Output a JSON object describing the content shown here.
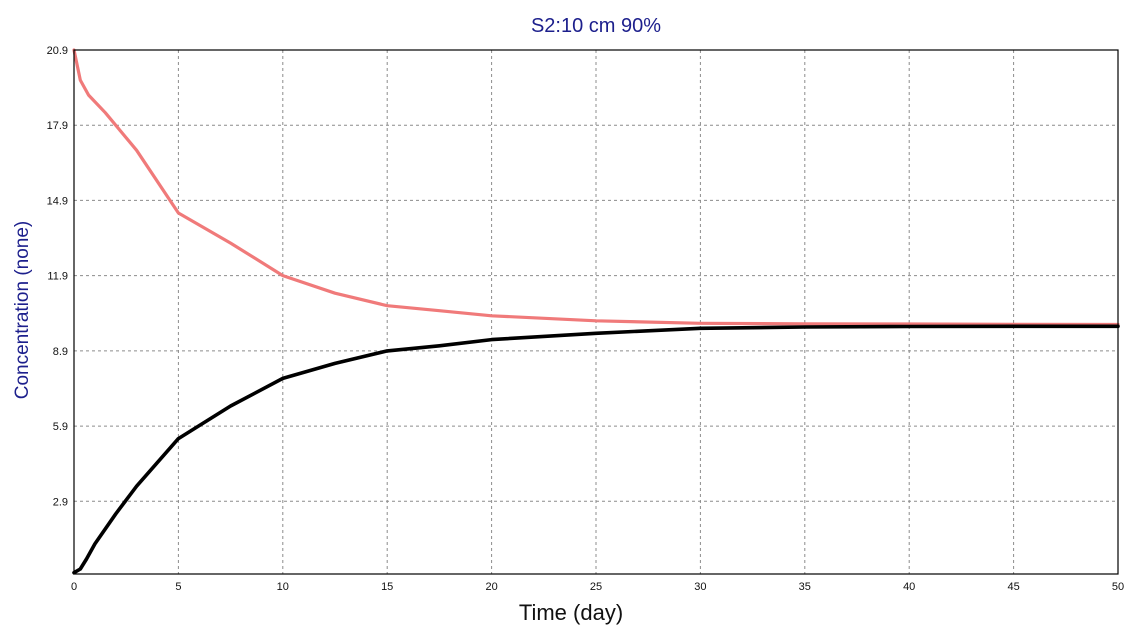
{
  "chart_data": {
    "type": "line",
    "title": "S2:10 cm 90%",
    "xlabel": "Time (day)",
    "ylabel": "Concentration (none)",
    "xlim": [
      0,
      50
    ],
    "ylim": [
      0,
      20.9
    ],
    "xticks": [
      "0",
      "5",
      "10",
      "15",
      "20",
      "25",
      "30",
      "35",
      "40",
      "45",
      "50"
    ],
    "xtick_values": [
      0,
      5,
      10,
      15,
      20,
      25,
      30,
      35,
      40,
      45,
      50
    ],
    "yticks": [
      "2.9",
      "5.9",
      "8.9",
      "11.9",
      "14.9",
      "17.9",
      "20.9"
    ],
    "ytick_values": [
      2.9,
      5.9,
      8.9,
      11.9,
      14.9,
      17.9,
      20.9
    ],
    "grid": true,
    "legend": "none",
    "series": [
      {
        "color": "#f07a7a",
        "x": [
          0,
          0.3,
          0.7,
          1.5,
          3,
          5,
          7.5,
          10,
          12.5,
          15,
          17.5,
          20,
          25,
          30,
          35,
          40,
          45,
          50
        ],
        "y": [
          20.9,
          19.7,
          19.1,
          18.4,
          16.9,
          14.4,
          13.2,
          11.9,
          11.2,
          10.7,
          10.5,
          10.3,
          10.1,
          10.0,
          9.98,
          9.97,
          9.96,
          9.95
        ]
      },
      {
        "color": "#000000",
        "x": [
          0,
          0.3,
          0.6,
          1,
          2,
          3,
          5,
          7.5,
          10,
          12.5,
          15,
          17.5,
          20,
          25,
          30,
          35,
          40,
          45,
          50
        ],
        "y": [
          0.05,
          0.2,
          0.6,
          1.2,
          2.4,
          3.5,
          5.4,
          6.7,
          7.8,
          8.4,
          8.9,
          9.1,
          9.35,
          9.6,
          9.8,
          9.85,
          9.87,
          9.88,
          9.88
        ]
      }
    ]
  }
}
